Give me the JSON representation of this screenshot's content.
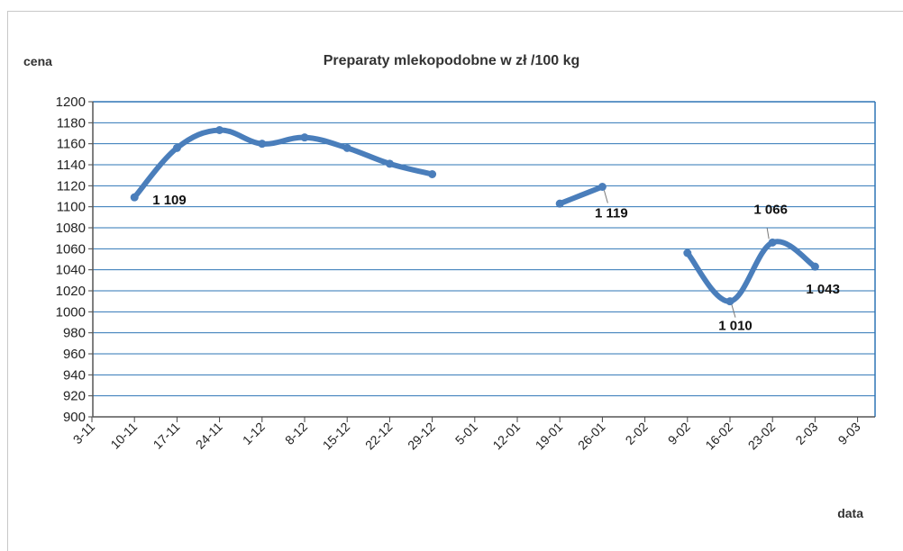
{
  "chart_data": {
    "type": "line",
    "title": "Preparaty mlekopodobne w zł /100 kg",
    "ylabel": "cena",
    "xlabel": "data",
    "ylim": [
      900,
      1200
    ],
    "y_ticks": [
      900,
      920,
      940,
      960,
      980,
      1000,
      1020,
      1040,
      1060,
      1080,
      1100,
      1120,
      1140,
      1160,
      1180,
      1200
    ],
    "categories": [
      "3-11",
      "10-11",
      "17-11",
      "24-11",
      "1-12",
      "8-12",
      "15-12",
      "22-12",
      "29-12",
      "5-01",
      "12-01",
      "19-01",
      "26-01",
      "2-02",
      "9-02",
      "16-02",
      "23-02",
      "2-03",
      "9-03"
    ],
    "grid": true,
    "legend": "none",
    "color": "#4a7ebb",
    "series": [
      {
        "values": [
          null,
          1109,
          1156,
          1173,
          1160,
          1166,
          1156,
          1141,
          1131,
          null,
          null,
          1103,
          1119,
          null,
          1056,
          1010,
          1066,
          1043,
          null
        ]
      }
    ],
    "data_labels": [
      {
        "category": "10-11",
        "text": "1 109"
      },
      {
        "category": "26-01",
        "text": "1 119"
      },
      {
        "category": "16-02",
        "text": "1 010"
      },
      {
        "category": "23-02",
        "text": "1 066"
      },
      {
        "category": "2-03",
        "text": "1 043"
      }
    ]
  }
}
